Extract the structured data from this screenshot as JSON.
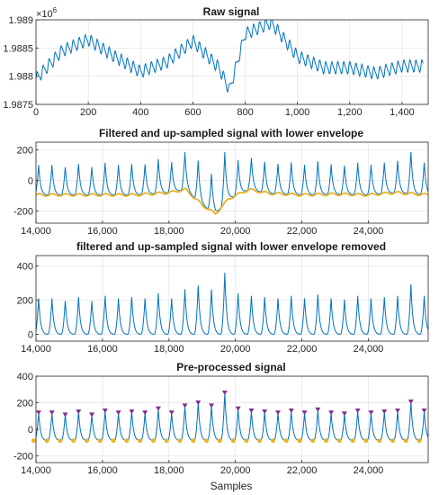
{
  "colors": {
    "signal": "#0072BD",
    "envelope": "#EDB120",
    "peak": "#7E2F8E",
    "trough": "#EDB120",
    "grid": "#DFDFDF",
    "axis": "#262626"
  },
  "chart_data": [
    {
      "type": "line",
      "title": "Raw signal",
      "xlabel": "",
      "ylabel": "",
      "exponent": "×10",
      "exponent_power": "6",
      "xlim": [
        0,
        1500
      ],
      "ylim": [
        1.9875,
        1.989
      ],
      "xticks": [
        0,
        200,
        400,
        600,
        800,
        1000,
        1200,
        1400
      ],
      "xtick_labels": [
        "0",
        "200",
        "400",
        "600",
        "800",
        "1,000",
        "1,200",
        "1,400"
      ],
      "yticks": [
        1.9875,
        1.988,
        1.9885,
        1.989
      ],
      "ytick_labels": [
        "1.9875",
        "1.988",
        "1.9885",
        "1.989"
      ],
      "grid": true,
      "series": [
        {
          "color": "#0072BD",
          "x": [
            0,
            100,
            200,
            300,
            400,
            500,
            600,
            700,
            740,
            800,
            900,
            1000,
            1100,
            1200,
            1300,
            1400,
            1480
          ],
          "y": [
            1.98795,
            1.98845,
            1.98865,
            1.98835,
            1.98808,
            1.98825,
            1.98862,
            1.98815,
            1.98775,
            1.98875,
            1.98895,
            1.98835,
            1.98815,
            1.98815,
            1.98805,
            1.98818,
            1.98818
          ]
        }
      ]
    },
    {
      "type": "line",
      "title": "Filtered and up-sampled signal with lower envelope",
      "xlabel": "",
      "ylabel": "",
      "xlim": [
        14000,
        25800
      ],
      "ylim": [
        -280,
        250
      ],
      "xticks": [
        14000,
        16000,
        18000,
        20000,
        22000,
        24000
      ],
      "xtick_labels": [
        "14,000",
        "16,000",
        "18,000",
        "20,000",
        "22,000",
        "24,000"
      ],
      "yticks": [
        -200,
        0,
        200
      ],
      "ytick_labels": [
        "-200",
        "0",
        "200"
      ],
      "grid": true,
      "series": [
        {
          "color": "#0072BD",
          "kind": "signal",
          "baseline_x": [
            14000,
            15000,
            16000,
            17000,
            18000,
            18500,
            18700,
            19000,
            19400,
            19800,
            20400,
            21000,
            22000,
            23000,
            24000,
            24800,
            25800
          ],
          "baseline_y": [
            -95,
            -95,
            -95,
            -95,
            -80,
            -60,
            -100,
            -160,
            -220,
            -120,
            -60,
            -85,
            -95,
            -90,
            -95,
            -80,
            -95
          ],
          "peak_height": 210
        },
        {
          "color": "#EDB120",
          "kind": "envelope",
          "x": [
            14000,
            15000,
            16000,
            17000,
            18000,
            18500,
            18700,
            19000,
            19400,
            19800,
            20400,
            21000,
            22000,
            23000,
            24000,
            24800,
            25800
          ],
          "y": [
            -95,
            -95,
            -95,
            -95,
            -80,
            -60,
            -100,
            -160,
            -220,
            -120,
            -60,
            -85,
            -95,
            -90,
            -95,
            -80,
            -95
          ]
        }
      ]
    },
    {
      "type": "line",
      "title": "filtered and up-sampled signal with lower envelope removed",
      "xlabel": "",
      "ylabel": "",
      "xlim": [
        14000,
        25800
      ],
      "ylim": [
        -40,
        460
      ],
      "xticks": [
        14000,
        16000,
        18000,
        20000,
        22000,
        24000
      ],
      "xtick_labels": [
        "14,000",
        "16,000",
        "18,000",
        "20,000",
        "22,000",
        "24,000"
      ],
      "yticks": [
        0,
        200,
        400
      ],
      "ytick_labels": [
        "0",
        "200",
        "400"
      ],
      "grid": true,
      "series": [
        {
          "color": "#0072BD",
          "kind": "signal",
          "baseline": 0,
          "peak_height": 225
        }
      ]
    },
    {
      "type": "scatter",
      "title": "Pre-processed signal",
      "xlabel": "Samples",
      "ylabel": "",
      "xlim": [
        14000,
        25800
      ],
      "ylim": [
        -250,
        400
      ],
      "xticks": [
        14000,
        16000,
        18000,
        20000,
        22000,
        24000
      ],
      "xtick_labels": [
        "14,000",
        "16,000",
        "18,000",
        "20,000",
        "22,000",
        "24,000"
      ],
      "yticks": [
        -200,
        0,
        200,
        400
      ],
      "ytick_labels": [
        "-200",
        "0",
        "200",
        "400"
      ],
      "grid": true,
      "series": [
        {
          "color": "#0072BD",
          "kind": "signal",
          "baseline": -85,
          "peak_height": 225
        },
        {
          "color": "#7E2F8E",
          "kind": "peaks",
          "marker": "triangle-down"
        },
        {
          "color": "#EDB120",
          "kind": "troughs",
          "marker": "circle"
        }
      ]
    }
  ],
  "beats": {
    "x": [
      14080,
      14480,
      14880,
      15280,
      15680,
      16080,
      16480,
      16880,
      17280,
      17680,
      18080,
      18480,
      18880,
      19280,
      19680,
      20080,
      20480,
      20880,
      21280,
      21680,
      22080,
      22480,
      22880,
      23280,
      23680,
      24080,
      24480,
      24880,
      25280,
      25680
    ],
    "amp": [
      140,
      140,
      130,
      145,
      130,
      150,
      140,
      145,
      140,
      160,
      140,
      175,
      190,
      175,
      240,
      160,
      150,
      145,
      140,
      150,
      140,
      155,
      140,
      135,
      150,
      140,
      145,
      150,
      195,
      150
    ]
  }
}
